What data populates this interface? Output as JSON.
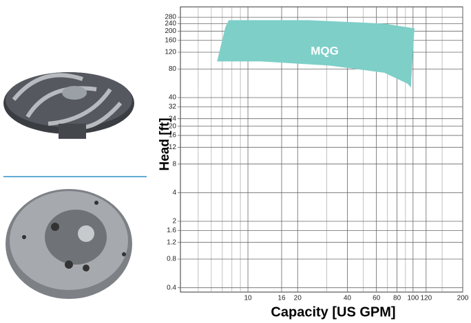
{
  "chart_data": {
    "type": "region",
    "x_label": "Capacity [US GPM]",
    "y_label": "Head [ft]",
    "log_x": true,
    "log_y": true,
    "grid": true,
    "xlim": [
      3.9,
      200
    ],
    "ylim": [
      0.36,
      360
    ],
    "xticks": [
      10,
      16,
      20,
      40,
      60,
      80,
      100,
      120,
      200
    ],
    "x_minor_grid": [
      5,
      6,
      7,
      8,
      9,
      30,
      50,
      70,
      90,
      150
    ],
    "yticks": [
      0.4,
      0.8,
      1.2,
      1.6,
      2,
      4,
      8,
      12,
      16,
      20,
      24,
      32,
      40,
      80,
      120,
      160,
      200,
      240,
      280
    ],
    "series": [
      {
        "name": "MQG",
        "color": "#7ecfc8",
        "x": [
          6.5,
          7.3,
          7.65,
          23.4,
          67,
          102,
          97,
          92.6,
          67,
          31,
          12
        ],
        "values": [
          96,
          221,
          261,
          261,
          240,
          214,
          51,
          56,
          73,
          87,
          96
        ]
      }
    ]
  }
}
